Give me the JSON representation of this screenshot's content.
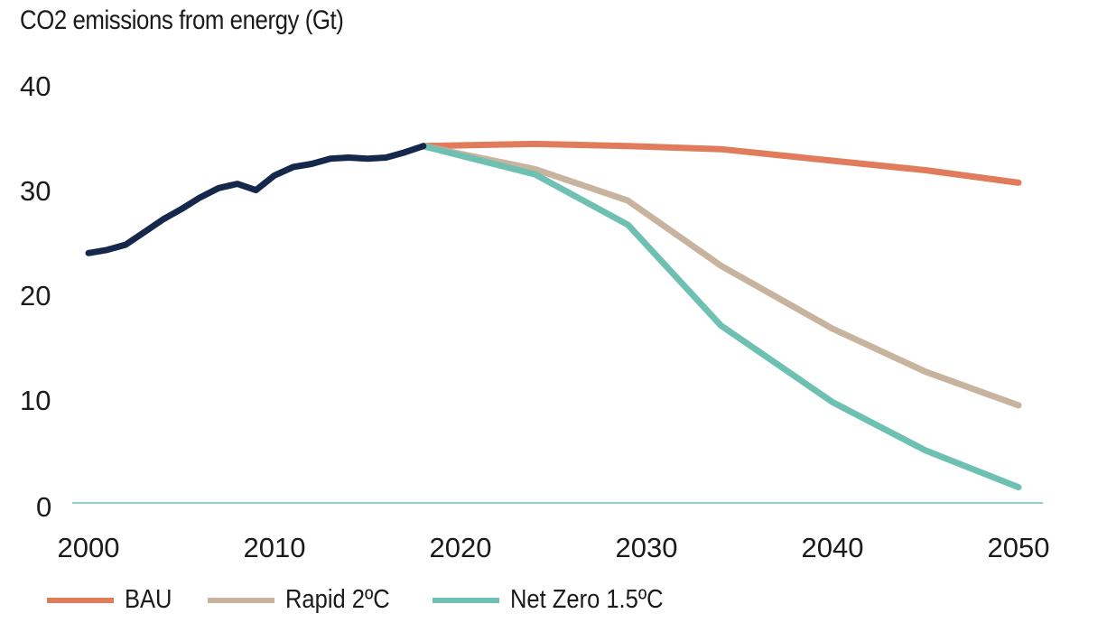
{
  "chart_data": {
    "type": "line",
    "title": "CO2 emissions from energy (Gt)",
    "xlabel": "",
    "ylabel": "",
    "xlim": [
      2000,
      2050
    ],
    "ylim": [
      0,
      40
    ],
    "x_ticks": [
      2000,
      2010,
      2020,
      2030,
      2040,
      2050
    ],
    "y_ticks": [
      0,
      10,
      20,
      30,
      40
    ],
    "grid": false,
    "legend_position": "bottom",
    "series": [
      {
        "name": "",
        "color": "#15284b",
        "points": [
          [
            2000,
            23.8
          ],
          [
            2001,
            24.1
          ],
          [
            2002,
            24.6
          ],
          [
            2003,
            25.8
          ],
          [
            2004,
            27.0
          ],
          [
            2005,
            28.0
          ],
          [
            2006,
            29.1
          ],
          [
            2007,
            30.0
          ],
          [
            2008,
            30.4
          ],
          [
            2009,
            29.8
          ],
          [
            2010,
            31.2
          ],
          [
            2011,
            32.0
          ],
          [
            2012,
            32.3
          ],
          [
            2013,
            32.8
          ],
          [
            2014,
            32.9
          ],
          [
            2015,
            32.8
          ],
          [
            2016,
            32.9
          ],
          [
            2017,
            33.4
          ],
          [
            2018,
            34.0
          ]
        ]
      },
      {
        "name": "BAU",
        "color": "#e07b5c",
        "points": [
          [
            2018,
            34.0
          ],
          [
            2024,
            34.2
          ],
          [
            2029,
            34.0
          ],
          [
            2034,
            33.7
          ],
          [
            2040,
            32.6
          ],
          [
            2045,
            31.7
          ],
          [
            2050,
            30.5
          ]
        ]
      },
      {
        "name": "Rapid 2ºC",
        "color": "#c8b39e",
        "points": [
          [
            2018,
            34.0
          ],
          [
            2024,
            31.8
          ],
          [
            2029,
            28.8
          ],
          [
            2034,
            22.6
          ],
          [
            2040,
            16.6
          ],
          [
            2045,
            12.5
          ],
          [
            2050,
            9.3
          ]
        ]
      },
      {
        "name": "Net Zero 1.5ºC",
        "color": "#6ec1b2",
        "points": [
          [
            2018,
            34.0
          ],
          [
            2024,
            31.3
          ],
          [
            2029,
            26.5
          ],
          [
            2034,
            16.9
          ],
          [
            2040,
            9.6
          ],
          [
            2045,
            5.0
          ],
          [
            2050,
            1.5
          ]
        ]
      }
    ],
    "baseline_color": "#6ec1b2"
  }
}
